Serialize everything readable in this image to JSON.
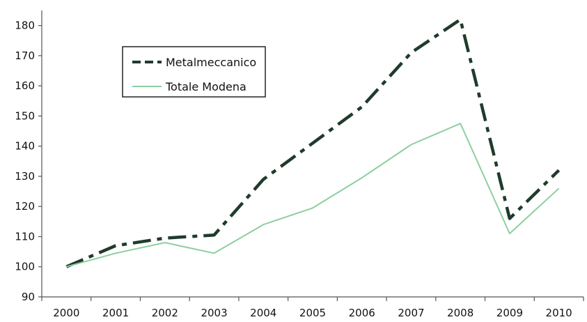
{
  "chart_data": {
    "type": "line",
    "title": "",
    "xlabel": "",
    "ylabel": "",
    "x": [
      "2000",
      "2001",
      "2002",
      "2003",
      "2004",
      "2005",
      "2006",
      "2007",
      "2008",
      "2009",
      "2010"
    ],
    "ylim": [
      90,
      185
    ],
    "yticks": [
      90,
      100,
      110,
      120,
      130,
      140,
      150,
      160,
      170,
      180
    ],
    "grid": false,
    "legend_position": "top-left",
    "series": [
      {
        "name": "Metalmeccanico",
        "values": [
          100,
          107,
          109.5,
          110.5,
          129,
          141,
          153,
          171,
          182,
          116,
          132
        ],
        "color": "#1f3b2c",
        "style": "dash-dot"
      },
      {
        "name": "Totale Modena",
        "values": [
          100,
          104.5,
          108,
          104.5,
          114,
          119.5,
          129.5,
          140.5,
          147.5,
          111,
          126
        ],
        "color": "#8ccf9f",
        "style": "solid"
      }
    ]
  }
}
